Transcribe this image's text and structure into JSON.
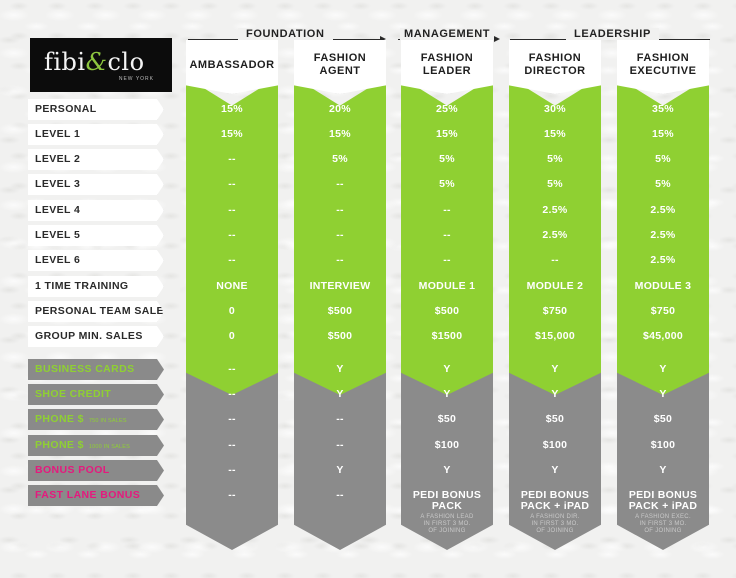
{
  "brand": {
    "logo_text": "fibi",
    "logo_amp": "&",
    "logo_text2": "clo",
    "logo_sub": "NEW YORK"
  },
  "tiers": {
    "foundation": "FOUNDATION",
    "management": "MANAGEMENT",
    "leadership": "LEADERSHIP"
  },
  "columns": [
    {
      "title": "AMBASSADOR"
    },
    {
      "title": "FASHION\nAGENT"
    },
    {
      "title": "FASHION\nLEADER"
    },
    {
      "title": "FASHION\nDIRECTOR"
    },
    {
      "title": "FASHION\nEXECUTIVE"
    }
  ],
  "rows": [
    {
      "label": "PERSONAL",
      "label_small": "",
      "label_color": "#2a2a2a",
      "values": [
        "15%",
        "20%",
        "25%",
        "30%",
        "35%"
      ]
    },
    {
      "label": "LEVEL 1",
      "label_small": "",
      "label_color": "#2a2a2a",
      "values": [
        "15%",
        "15%",
        "15%",
        "15%",
        "15%"
      ]
    },
    {
      "label": "LEVEL 2",
      "label_small": "",
      "label_color": "#2a2a2a",
      "values": [
        "--",
        "5%",
        "5%",
        "5%",
        "5%"
      ]
    },
    {
      "label": "LEVEL 3",
      "label_small": "",
      "label_color": "#2a2a2a",
      "values": [
        "--",
        "--",
        "5%",
        "5%",
        "5%"
      ]
    },
    {
      "label": "LEVEL 4",
      "label_small": "",
      "label_color": "#2a2a2a",
      "values": [
        "--",
        "--",
        "--",
        "2.5%",
        "2.5%"
      ]
    },
    {
      "label": "LEVEL 5",
      "label_small": "",
      "label_color": "#2a2a2a",
      "values": [
        "--",
        "--",
        "--",
        "2.5%",
        "2.5%"
      ]
    },
    {
      "label": "LEVEL 6",
      "label_small": "",
      "label_color": "#2a2a2a",
      "values": [
        "--",
        "--",
        "--",
        "--",
        "2.5%"
      ]
    },
    {
      "label": "1 TIME TRAINING",
      "label_small": "",
      "label_color": "#2a2a2a",
      "values": [
        "NONE",
        "INTERVIEW",
        "MODULE 1",
        "MODULE 2",
        "MODULE 3"
      ]
    },
    {
      "label": "PERSONAL TEAM SALES",
      "label_small": "",
      "label_color": "#2a2a2a",
      "values": [
        "0",
        "$500",
        "$500",
        "$750",
        "$750"
      ]
    },
    {
      "label": "GROUP MIN. SALES",
      "label_small": "",
      "label_color": "#2a2a2a",
      "values": [
        "0",
        "$500",
        "$1500",
        "$15,000",
        "$45,000"
      ]
    },
    {
      "label": "BUSINESS CARDS",
      "label_small": "",
      "label_color": "#8fd032",
      "values": [
        "--",
        "Y",
        "Y",
        "Y",
        "Y"
      ]
    },
    {
      "label": "SHOE CREDIT",
      "label_small": "",
      "label_color": "#8fd032",
      "values": [
        "--",
        "Y",
        "Y",
        "Y",
        "Y"
      ]
    },
    {
      "label": "PHONE $",
      "label_small": "750 IN SALES",
      "label_color": "#8fd032",
      "values": [
        "--",
        "--",
        "$50",
        "$50",
        "$50"
      ]
    },
    {
      "label": "PHONE $",
      "label_small": "1000 IN SALES",
      "label_color": "#8fd032",
      "values": [
        "--",
        "--",
        "$100",
        "$100",
        "$100"
      ]
    },
    {
      "label": "BONUS POOL",
      "label_small": "",
      "label_color": "#e5197e",
      "values": [
        "--",
        "Y",
        "Y",
        "Y",
        "Y"
      ]
    },
    {
      "label": "FAST LANE BONUS",
      "label_small": "",
      "label_color": "#e5197e",
      "values": [
        "--",
        "--",
        "PEDI BONUS\nPACK",
        "PEDI BONUS\nPACK + iPAD",
        "PEDI BONUS\nPACK + iPAD"
      ],
      "notes": [
        "",
        "",
        "A FASHION LEAD\nIN FIRST 3 MO.\nOF JOINING",
        "A FASHION DIR.\nIN FIRST 3 MO.\nOF JOINING",
        "A FASHION EXEC.\nIN FIRST 3 MO.\nOF JOINING"
      ]
    }
  ],
  "colors": {
    "green": "#8fd032",
    "gray": "#8b8b8b",
    "pink": "#e5197e",
    "logo_bg": "#0c0c0c"
  }
}
